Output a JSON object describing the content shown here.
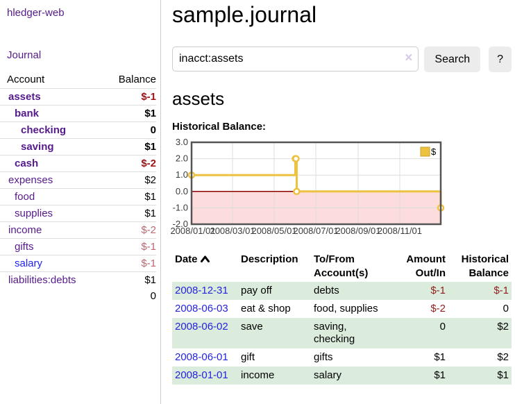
{
  "app": {
    "brand": "hledger-web",
    "nav_journal": "Journal"
  },
  "sidebar": {
    "headers": {
      "account": "Account",
      "balance": "Balance"
    },
    "accounts": [
      {
        "name": "assets",
        "balance": "$-1",
        "indent": 0,
        "bold": true,
        "link_color": "purple",
        "balance_color": "neg-strong"
      },
      {
        "name": "bank",
        "balance": "$1",
        "indent": 1,
        "bold": true,
        "link_color": "purple",
        "balance_color": ""
      },
      {
        "name": "checking",
        "balance": "0",
        "indent": 2,
        "bold": true,
        "link_color": "purple",
        "balance_color": ""
      },
      {
        "name": "saving",
        "balance": "$1",
        "indent": 2,
        "bold": true,
        "link_color": "purple",
        "balance_color": ""
      },
      {
        "name": "cash",
        "balance": "$-2",
        "indent": 1,
        "bold": true,
        "link_color": "purple",
        "balance_color": "neg-strong"
      },
      {
        "name": "expenses",
        "balance": "$2",
        "indent": 0,
        "bold": false,
        "link_color": "purple",
        "balance_color": ""
      },
      {
        "name": "food",
        "balance": "$1",
        "indent": 1,
        "bold": false,
        "link_color": "purple",
        "balance_color": ""
      },
      {
        "name": "supplies",
        "balance": "$1",
        "indent": 1,
        "bold": false,
        "link_color": "purple",
        "balance_color": ""
      },
      {
        "name": "income",
        "balance": "$-2",
        "indent": 0,
        "bold": false,
        "link_color": "purple",
        "balance_color": "neg-soft"
      },
      {
        "name": "gifts",
        "balance": "$-1",
        "indent": 1,
        "bold": false,
        "link_color": "purple",
        "balance_color": "neg-soft"
      },
      {
        "name": "salary",
        "balance": "$-1",
        "indent": 1,
        "bold": false,
        "link_color": "blue",
        "balance_color": "neg-soft"
      },
      {
        "name": "liabilities:debts",
        "balance": "$1",
        "indent": 0,
        "bold": false,
        "link_color": "purple",
        "balance_color": ""
      }
    ],
    "total": "0"
  },
  "header": {
    "title": "sample.journal"
  },
  "search": {
    "value": "inacct:assets",
    "clear_icon": "×",
    "button_label": "Search",
    "help_label": "?"
  },
  "account_page": {
    "title": "assets",
    "section_label": "Historical Balance:"
  },
  "chart_data": {
    "type": "line",
    "step": true,
    "title": "Historical Balance",
    "series": [
      {
        "name": "$",
        "color": "#edc240",
        "marker_fill": "#ffffff",
        "points": [
          [
            "2008-01-01",
            1
          ],
          [
            "2008-06-01",
            2
          ],
          [
            "2008-06-02",
            2
          ],
          [
            "2008-06-03",
            0
          ],
          [
            "2008-12-31",
            -1
          ]
        ]
      }
    ],
    "xrange": [
      "2008-01-01",
      "2008-12-31"
    ],
    "ylim": [
      -2,
      3
    ],
    "yticks": [
      3.0,
      2.0,
      1.0,
      0.0,
      -1.0,
      -2.0
    ],
    "xticks": [
      "2008/01/01",
      "2008/03/01",
      "2008/05/01",
      "2008/07/01",
      "2008/09/01",
      "2008/11/01"
    ],
    "grid": true,
    "legend_position": "top-right",
    "negative_fill": "#fcdcdc",
    "zero_line_color": "#8b0000",
    "border_color": "#545454",
    "grid_color": "#dddddd"
  },
  "register": {
    "sort": "asc",
    "columns": [
      "Date",
      "Description",
      "To/From Account(s)",
      "Amount Out/In",
      "Historical Balance"
    ],
    "rows": [
      {
        "date": "2008-12-31",
        "description": "pay off",
        "accounts": [
          "debts"
        ],
        "amount": "$-1",
        "amount_neg": true,
        "balance": "$-1",
        "balance_neg": true
      },
      {
        "date": "2008-06-03",
        "description": "eat & shop",
        "accounts": [
          "food",
          "supplies"
        ],
        "amount": "$-2",
        "amount_neg": true,
        "balance": "0",
        "balance_neg": false
      },
      {
        "date": "2008-06-02",
        "description": "save",
        "accounts": [
          "saving",
          "checking"
        ],
        "amount": "0",
        "amount_neg": false,
        "balance": "$2",
        "balance_neg": false
      },
      {
        "date": "2008-06-01",
        "description": "gift",
        "accounts": [
          "gifts"
        ],
        "amount": "$1",
        "amount_neg": false,
        "balance": "$2",
        "balance_neg": false
      },
      {
        "date": "2008-01-01",
        "description": "income",
        "accounts": [
          "salary"
        ],
        "amount": "$1",
        "amount_neg": false,
        "balance": "$1",
        "balance_neg": false
      }
    ]
  }
}
